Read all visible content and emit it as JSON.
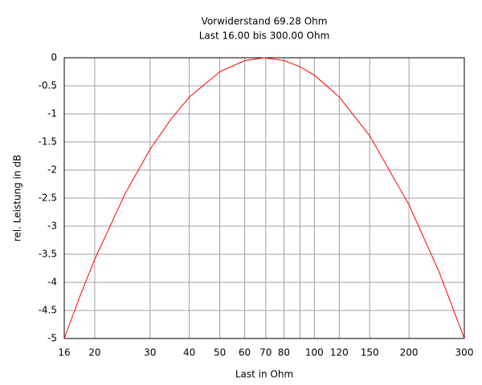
{
  "chart_data": {
    "type": "line",
    "title": "Vorwiderstand 69.28 Ohm",
    "subtitle": "Last 16.00 bis 300.00 Ohm",
    "x_label": "Last in Ohm",
    "y_label": "rel. Leistung in dB",
    "x": [
      16,
      18,
      20,
      25,
      30,
      35,
      40,
      50,
      60,
      69.28,
      80,
      90,
      100,
      120,
      150,
      200,
      250,
      300
    ],
    "values": [
      -5.0,
      -4.23,
      -3.59,
      -2.42,
      -1.63,
      -1.09,
      -0.7,
      -0.25,
      -0.05,
      0,
      -0.05,
      -0.16,
      -0.31,
      -0.7,
      -1.39,
      -2.62,
      -3.83,
      -5.0
    ],
    "color": "#ff0000",
    "xscale": "log",
    "xlim": [
      16,
      300
    ],
    "ylim": [
      -5,
      0
    ],
    "xticks": [
      16,
      20,
      30,
      40,
      50,
      60,
      70,
      80,
      {
        "value": 90,
        "label": null
      },
      100,
      120,
      150,
      200,
      300
    ],
    "yticks": [
      0,
      -0.5,
      -1,
      -1.5,
      -2,
      -2.5,
      -3,
      -3.5,
      -4,
      -4.5,
      -5
    ],
    "grid": true
  }
}
